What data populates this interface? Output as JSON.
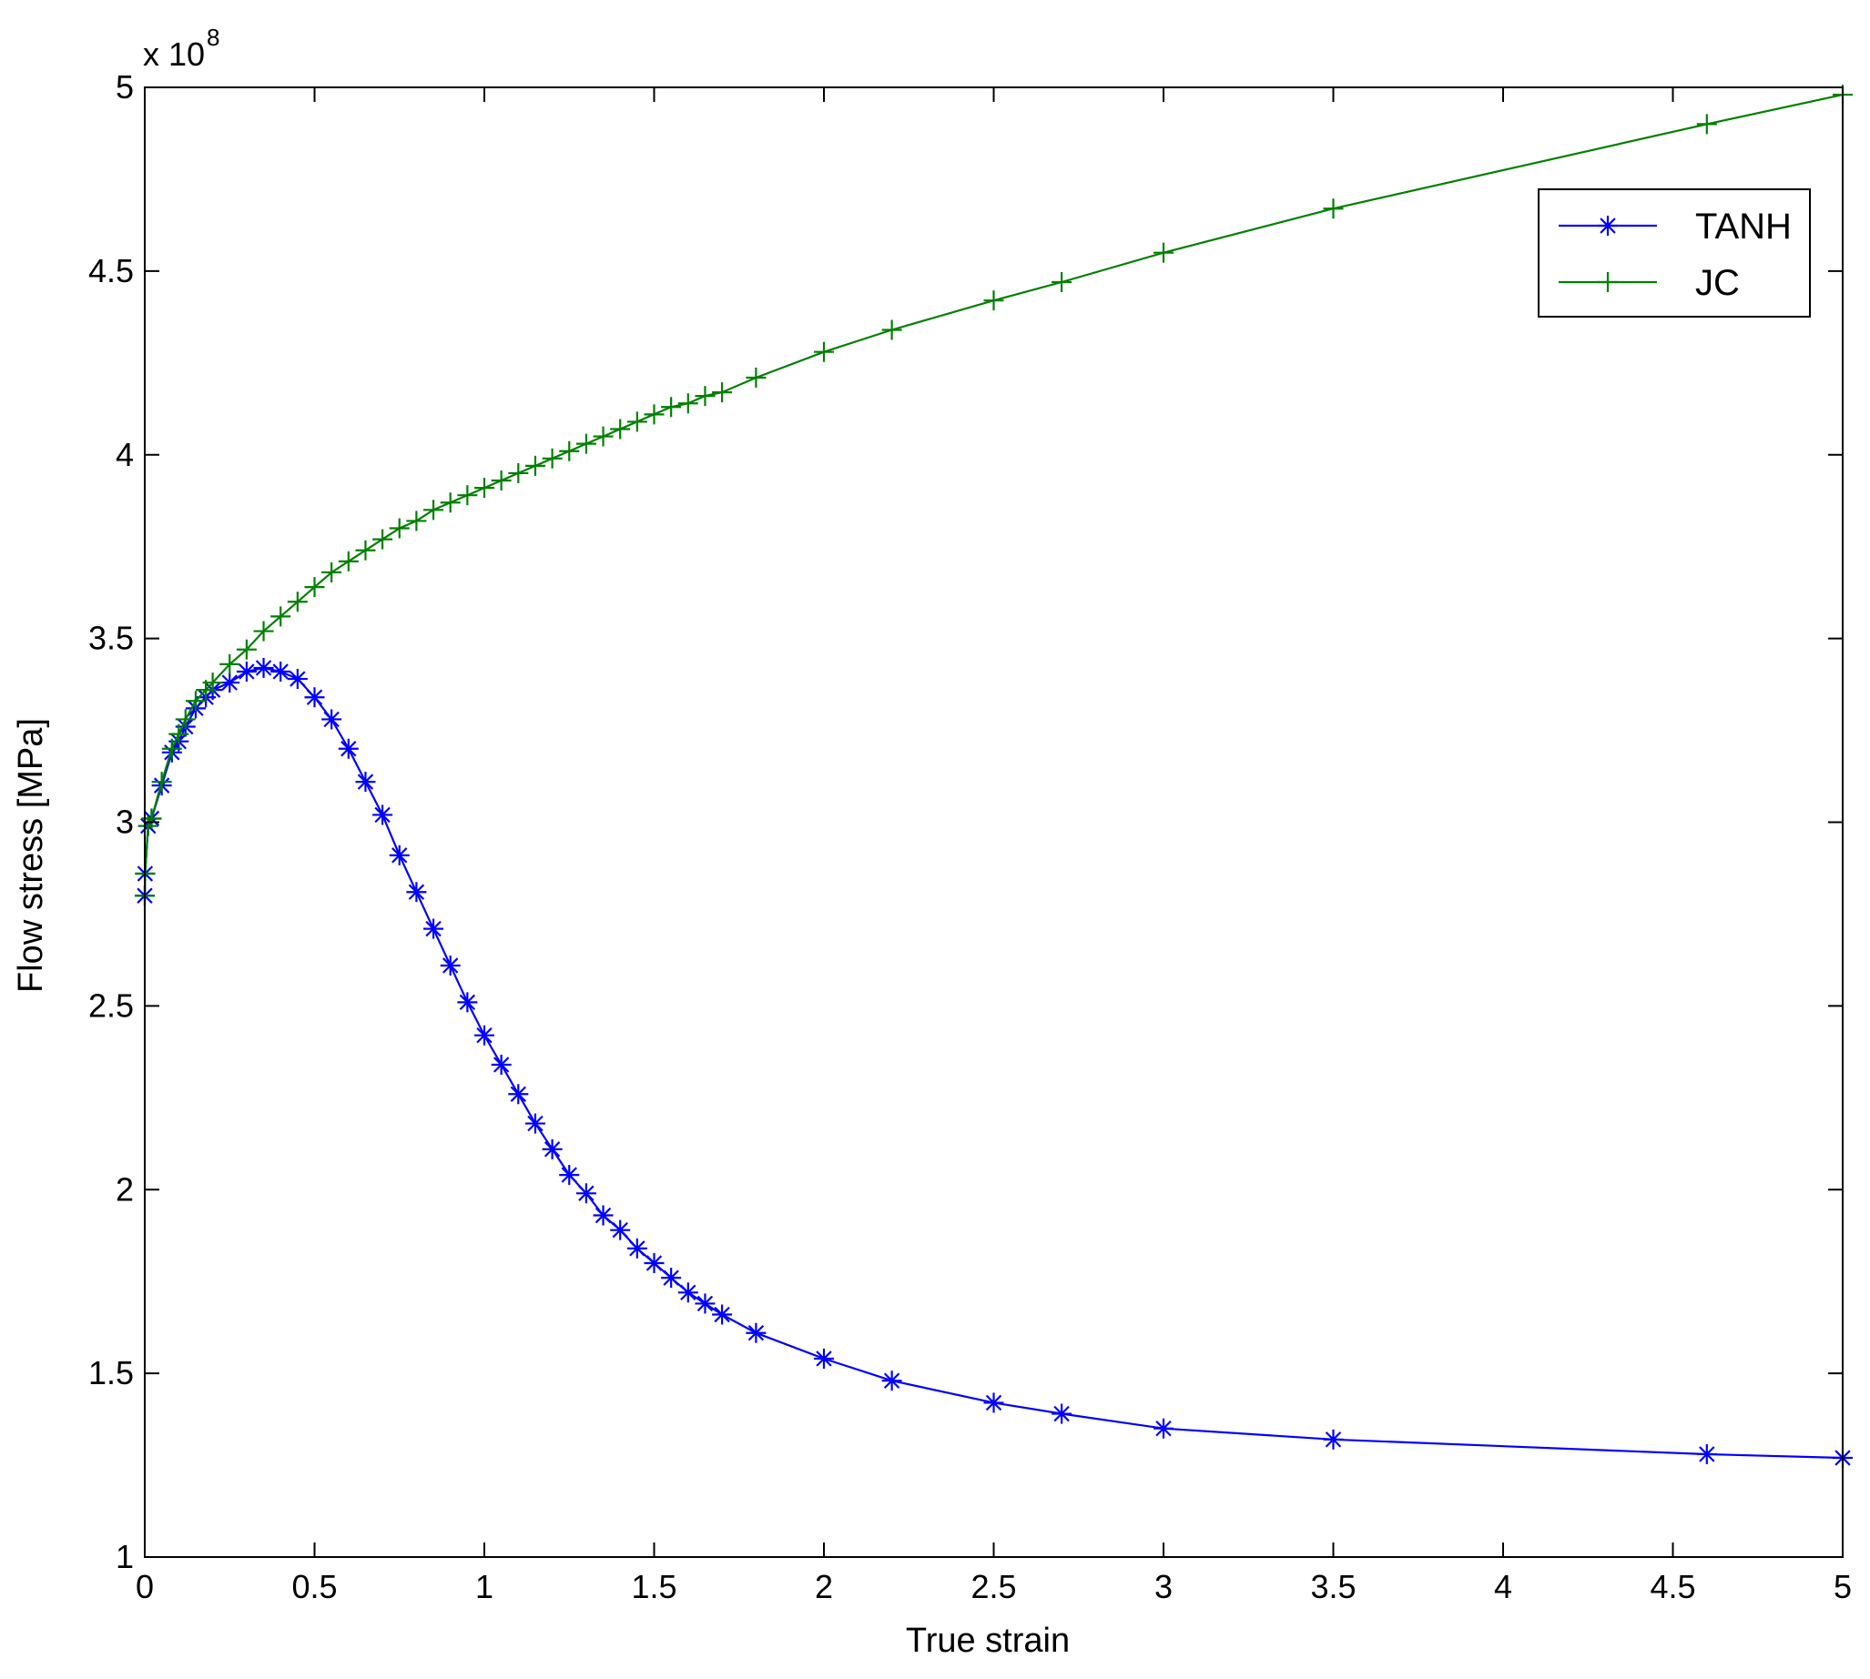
{
  "chart_data": {
    "type": "line",
    "xlabel": "True strain",
    "ylabel": "Flow stress [MPa]",
    "y_multiplier_base": "x 10",
    "y_multiplier_exp": "8",
    "xlim": [
      0,
      5
    ],
    "ylim": [
      100000000,
      500000000
    ],
    "grid": false,
    "legend_position": "top-right",
    "x_ticks": [
      0,
      0.5,
      1,
      1.5,
      2,
      2.5,
      3,
      3.5,
      4,
      4.5,
      5
    ],
    "x_tick_labels": [
      "0",
      "0.5",
      "1",
      "1.5",
      "2",
      "2.5",
      "3",
      "3.5",
      "4",
      "4.5",
      "5"
    ],
    "y_ticks": [
      100000000,
      150000000,
      200000000,
      250000000,
      300000000,
      350000000,
      400000000,
      450000000,
      500000000
    ],
    "y_tick_labels": [
      "1",
      "1.5",
      "2",
      "2.5",
      "3",
      "3.5",
      "4",
      "4.5",
      "5"
    ],
    "series": [
      {
        "name": "TANH",
        "color": "#0000ff",
        "marker": "asterisk",
        "x": [
          0,
          0.001,
          0.01,
          0.02,
          0.05,
          0.08,
          0.1,
          0.12,
          0.15,
          0.18,
          0.2,
          0.25,
          0.3,
          0.35,
          0.4,
          0.45,
          0.5,
          0.55,
          0.6,
          0.65,
          0.7,
          0.75,
          0.8,
          0.85,
          0.9,
          0.95,
          1.0,
          1.05,
          1.1,
          1.15,
          1.2,
          1.25,
          1.3,
          1.35,
          1.4,
          1.45,
          1.5,
          1.55,
          1.6,
          1.65,
          1.7,
          1.8,
          2.0,
          2.2,
          2.5,
          2.7,
          3.0,
          3.5,
          4.6,
          5.0
        ],
        "y": [
          280000000,
          286000000,
          299000000,
          301000000,
          310000000,
          319000000,
          322000000,
          326000000,
          331000000,
          334000000,
          336000000,
          338000000,
          341000000,
          342000000,
          341000000,
          339000000,
          334000000,
          328000000,
          320000000,
          311000000,
          302000000,
          291000000,
          281000000,
          271000000,
          261000000,
          251000000,
          242000000,
          234000000,
          226000000,
          218000000,
          211000000,
          204000000,
          199000000,
          193000000,
          189000000,
          184000000,
          180000000,
          176000000,
          172000000,
          169000000,
          166000000,
          161000000,
          154000000,
          148000000,
          142000000,
          139000000,
          135000000,
          132000000,
          128000000,
          127000000
        ]
      },
      {
        "name": "JC",
        "color": "#008000",
        "marker": "plus",
        "x": [
          0,
          0.001,
          0.01,
          0.02,
          0.05,
          0.08,
          0.1,
          0.12,
          0.15,
          0.18,
          0.2,
          0.25,
          0.3,
          0.35,
          0.4,
          0.45,
          0.5,
          0.55,
          0.6,
          0.65,
          0.7,
          0.75,
          0.8,
          0.85,
          0.9,
          0.95,
          1.0,
          1.05,
          1.1,
          1.15,
          1.2,
          1.25,
          1.3,
          1.35,
          1.4,
          1.45,
          1.5,
          1.55,
          1.6,
          1.65,
          1.7,
          1.8,
          2.0,
          2.2,
          2.5,
          2.7,
          3.0,
          3.5,
          4.6,
          5.0
        ],
        "y": [
          280000000,
          286000000,
          299000000,
          301000000,
          311000000,
          320000000,
          324000000,
          328000000,
          333000000,
          336000000,
          338000000,
          343000000,
          347000000,
          352000000,
          356000000,
          360000000,
          364000000,
          368000000,
          371000000,
          374000000,
          377000000,
          380000000,
          382000000,
          385000000,
          387000000,
          389000000,
          391000000,
          393000000,
          395000000,
          397000000,
          399000000,
          401000000,
          403000000,
          405000000,
          407000000,
          409000000,
          411000000,
          413000000,
          414000000,
          416000000,
          417000000,
          421000000,
          428000000,
          434000000,
          442000000,
          447000000,
          455000000,
          467000000,
          490000000,
          498000000
        ]
      }
    ]
  }
}
